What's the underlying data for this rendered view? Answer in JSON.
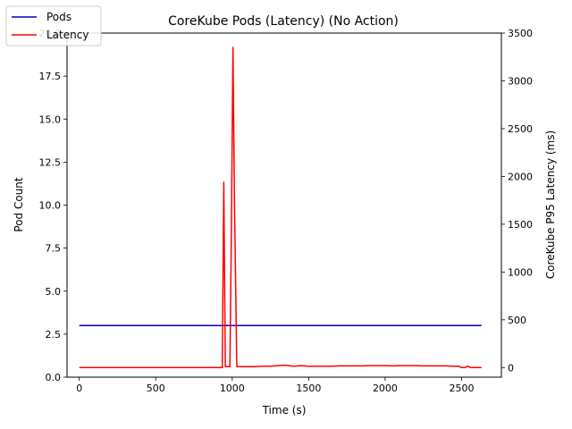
{
  "chart_data": {
    "type": "line",
    "title": "CoreKube Pods (Latency)  (No Action)",
    "xlabel": "Time (s)",
    "ylabel_left": "Pod Count",
    "ylabel_right": "CoreKube P95 Latency (ms)",
    "xlim": [
      -80,
      2760
    ],
    "ylim_left": [
      0,
      20
    ],
    "ylim_right": [
      -100,
      3500
    ],
    "xticks": [
      0,
      500,
      1000,
      1500,
      2000,
      2500
    ],
    "yticks_left": [
      0.0,
      2.5,
      5.0,
      7.5,
      10.0,
      12.5,
      15.0,
      17.5,
      20.0
    ],
    "yticks_left_labels": [
      "0.0",
      "2.5",
      "5.0",
      "7.5",
      "10.0",
      "12.5",
      "15.0",
      "17.5",
      "20.0"
    ],
    "yticks_right": [
      0,
      500,
      1000,
      1500,
      2000,
      2500,
      3000,
      3500
    ],
    "grid": false,
    "legend_position": "upper-left",
    "series": [
      {
        "name": "Pods",
        "color": "#0000cc",
        "axis": "left",
        "x": [
          0,
          2630
        ],
        "y": [
          3,
          3
        ]
      },
      {
        "name": "Latency",
        "color": "#ff0000",
        "axis": "right",
        "x": [
          0,
          100,
          200,
          300,
          400,
          500,
          600,
          700,
          800,
          900,
          935,
          945,
          955,
          985,
          995,
          1005,
          1015,
          1030,
          1040,
          1100,
          1150,
          1200,
          1250,
          1300,
          1350,
          1400,
          1450,
          1500,
          1550,
          1600,
          1650,
          1700,
          1750,
          1800,
          1850,
          1900,
          1950,
          2000,
          2050,
          2100,
          2150,
          2200,
          2250,
          2300,
          2350,
          2400,
          2450,
          2480,
          2500,
          2520,
          2540,
          2560,
          2630
        ],
        "y": [
          0,
          0,
          0,
          0,
          0,
          0,
          0,
          0,
          0,
          0,
          0,
          1940,
          10,
          10,
          1500,
          3350,
          1700,
          10,
          10,
          10,
          10,
          15,
          15,
          20,
          25,
          15,
          20,
          15,
          15,
          15,
          15,
          18,
          18,
          18,
          18,
          20,
          20,
          20,
          18,
          20,
          20,
          20,
          18,
          18,
          18,
          18,
          15,
          15,
          0,
          0,
          15,
          0,
          0
        ]
      }
    ]
  }
}
